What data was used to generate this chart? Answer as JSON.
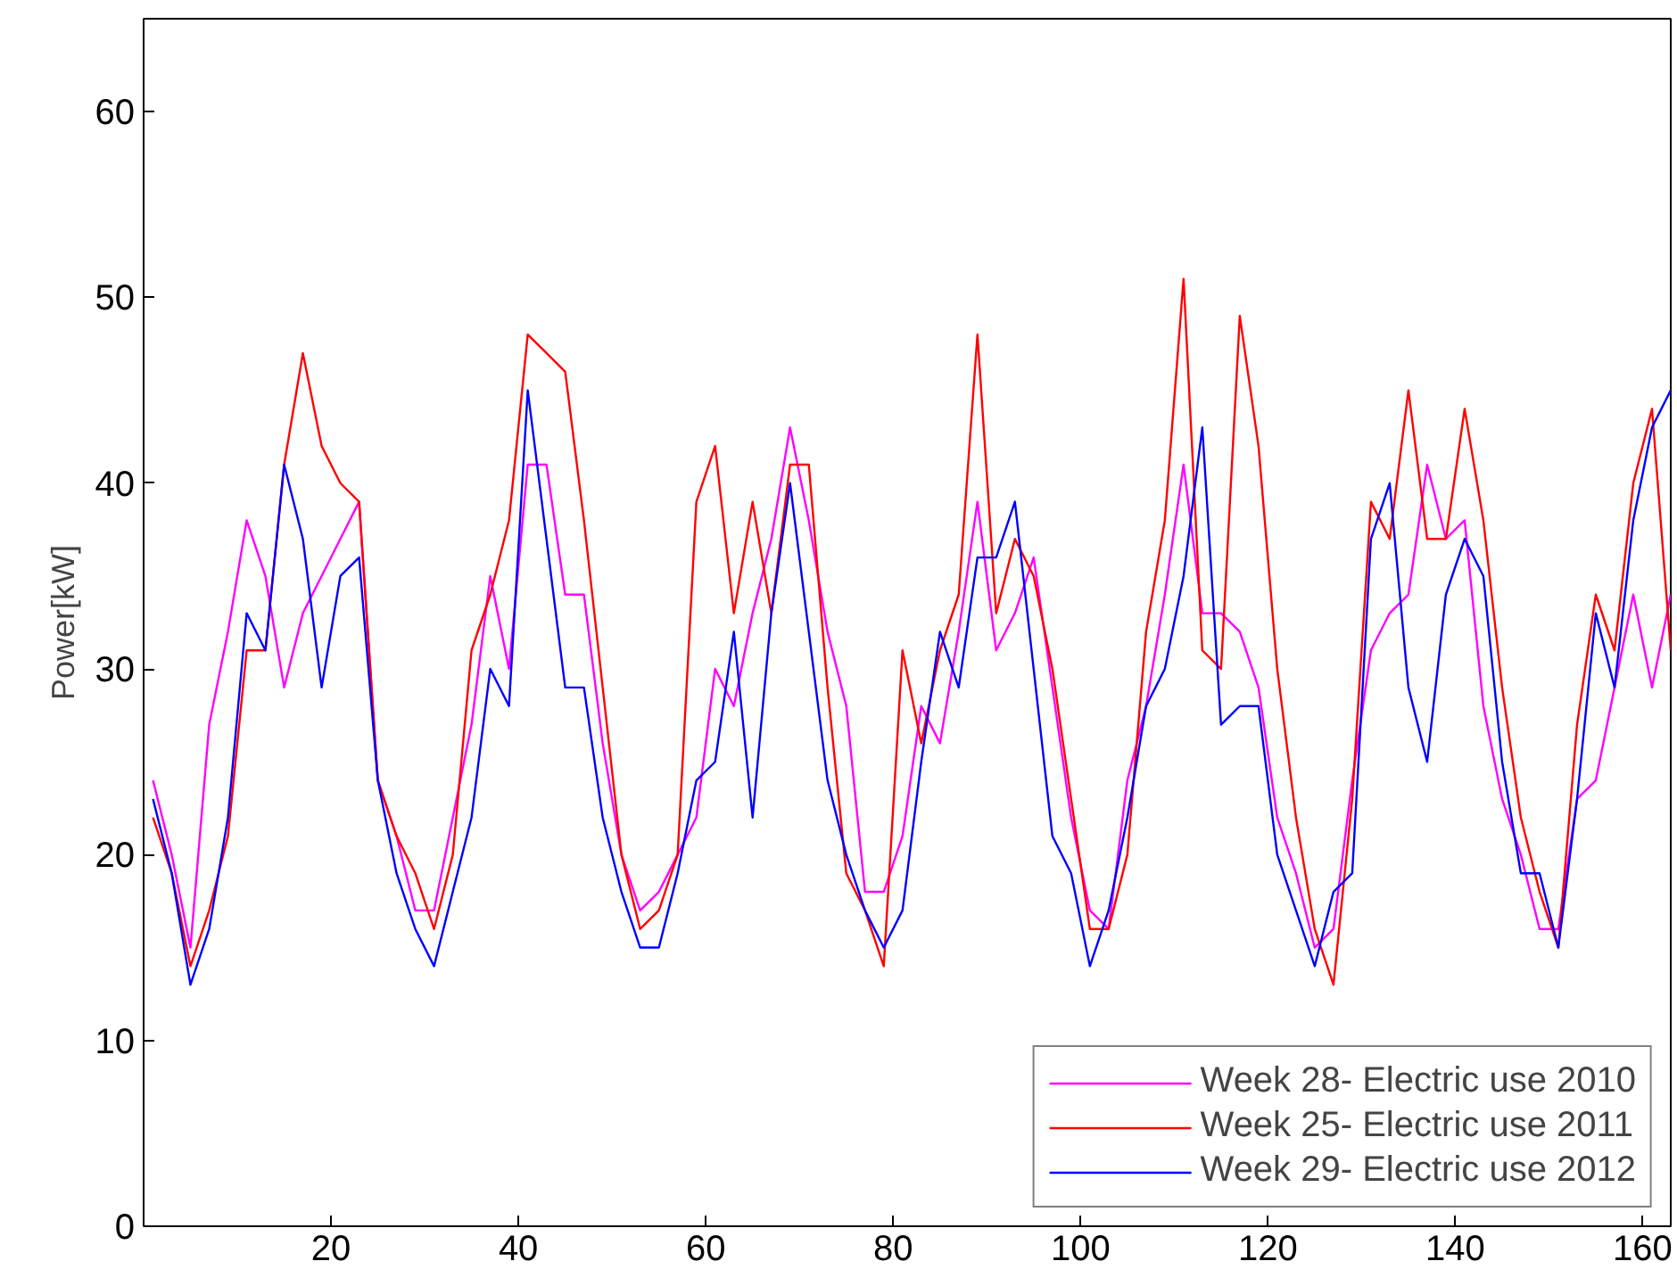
{
  "chart_data": {
    "type": "line",
    "ylabel": "Power[kW]",
    "x": [
      1,
      3,
      5,
      7,
      9,
      11,
      13,
      15,
      17,
      19,
      21,
      23,
      25,
      27,
      29,
      31,
      33,
      35,
      37,
      39,
      41,
      43,
      45,
      47,
      49,
      51,
      53,
      55,
      57,
      59,
      61,
      63,
      65,
      67,
      69,
      71,
      73,
      75,
      77,
      79,
      81,
      83,
      85,
      87,
      89,
      91,
      93,
      95,
      97,
      99,
      101,
      103,
      105,
      107,
      109,
      111,
      113,
      115,
      117,
      119,
      121,
      123,
      125,
      127,
      129,
      131,
      133,
      135,
      137,
      139,
      141,
      143,
      145,
      147,
      149,
      151,
      153,
      155,
      157,
      159,
      161,
      163
    ],
    "series": [
      {
        "name": "Week 28- Electric use 2010",
        "color": "#ff00ff",
        "values": [
          24,
          20,
          15,
          27,
          32,
          38,
          35,
          29,
          33,
          35,
          37,
          39,
          24,
          21,
          17,
          17,
          22,
          27,
          35,
          30,
          41,
          41,
          34,
          34,
          26,
          20,
          17,
          18,
          20,
          22,
          30,
          28,
          33,
          37,
          43,
          38,
          32,
          28,
          18,
          18,
          21,
          28,
          26,
          32,
          39,
          31,
          33,
          36,
          29,
          22,
          17,
          16,
          24,
          28,
          34,
          41,
          33,
          33,
          32,
          29,
          22,
          19,
          15,
          16,
          24,
          31,
          33,
          34,
          41,
          37,
          38,
          28,
          23,
          20,
          16,
          16,
          23,
          24,
          29,
          34,
          29,
          34
        ]
      },
      {
        "name": "Week 25- Electric use 2011",
        "color": "#ff0000",
        "values": [
          22,
          19,
          14,
          17,
          21,
          31,
          31,
          41,
          47,
          42,
          40,
          39,
          24,
          21,
          19,
          16,
          20,
          31,
          34,
          38,
          48,
          47,
          46,
          38,
          29,
          20,
          16,
          17,
          20,
          39,
          42,
          33,
          39,
          33,
          41,
          41,
          29,
          19,
          17,
          14,
          31,
          26,
          31,
          34,
          48,
          33,
          37,
          35,
          30,
          23,
          16,
          16,
          20,
          32,
          38,
          51,
          31,
          30,
          49,
          42,
          30,
          22,
          16,
          13,
          23,
          39,
          37,
          45,
          37,
          37,
          44,
          38,
          29,
          22,
          18,
          15,
          27,
          34,
          31,
          40,
          44,
          31
        ]
      },
      {
        "name": "Week 29- Electric use 2012",
        "color": "#0000ff",
        "values": [
          23,
          19,
          13,
          16,
          22,
          33,
          31,
          41,
          37,
          29,
          35,
          36,
          24,
          19,
          16,
          14,
          18,
          22,
          30,
          28,
          45,
          37,
          29,
          29,
          22,
          18,
          15,
          15,
          19,
          24,
          25,
          32,
          22,
          33,
          40,
          32,
          24,
          20,
          17,
          15,
          17,
          25,
          32,
          29,
          36,
          36,
          39,
          30,
          21,
          19,
          14,
          17,
          22,
          28,
          30,
          35,
          43,
          27,
          28,
          28,
          20,
          17,
          14,
          18,
          19,
          37,
          40,
          29,
          25,
          34,
          37,
          35,
          25,
          19,
          19,
          15,
          23,
          33,
          29,
          38,
          43,
          45
        ]
      }
    ],
    "xlim": [
      0,
      163
    ],
    "xticks": [
      20,
      40,
      60,
      80,
      100,
      120,
      140,
      160
    ],
    "ylim": [
      0,
      65
    ],
    "yticks": [
      0,
      10,
      20,
      30,
      40,
      50,
      60
    ],
    "grid": false,
    "legend": "bottom right",
    "line_style": "solid"
  }
}
